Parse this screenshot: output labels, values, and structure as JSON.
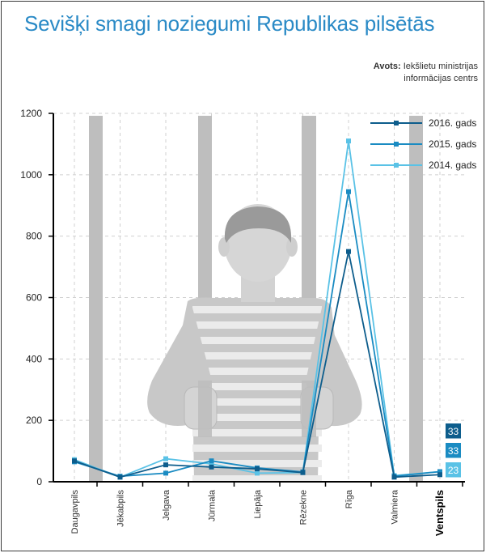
{
  "title": "Sevišķi smagi noziegumi Republikas pilsētās",
  "source": {
    "label": "Avots:",
    "line1": "Iekšlietu ministrijas",
    "line2": "informācijas centrs"
  },
  "colors": {
    "title": "#2a8ac6",
    "s2016": "#0d5d8c",
    "s2015": "#1a8bc2",
    "s2014": "#5ac2e6",
    "bars": "#bebebe",
    "prisoner": "#c8c8c8",
    "grid": "#d0d0d0"
  },
  "chart_data": {
    "type": "line",
    "categories": [
      "Daugavpils",
      "Jēkabpils",
      "Jelgava",
      "Jūrmala",
      "Liepāja",
      "Rēzekne",
      "Rīga",
      "Valmiera",
      "Ventspils"
    ],
    "highlight_category": "Ventspils",
    "ylim": [
      0,
      1200
    ],
    "yticks": [
      0,
      200,
      400,
      600,
      800,
      1000,
      1200
    ],
    "grid": true,
    "legend_position": "top-right",
    "series": [
      {
        "name": "2016. gads",
        "color": "#0d5d8c",
        "values": [
          68,
          15,
          55,
          48,
          42,
          30,
          750,
          15,
          23
        ]
      },
      {
        "name": "2015. gads",
        "color": "#1a8bc2",
        "values": [
          65,
          18,
          28,
          68,
          45,
          32,
          945,
          18,
          33
        ]
      },
      {
        "name": "2014. gads",
        "color": "#5ac2e6",
        "values": [
          72,
          15,
          75,
          58,
          28,
          30,
          1110,
          20,
          33
        ]
      }
    ],
    "end_labels": [
      "33",
      "33",
      "23"
    ]
  }
}
